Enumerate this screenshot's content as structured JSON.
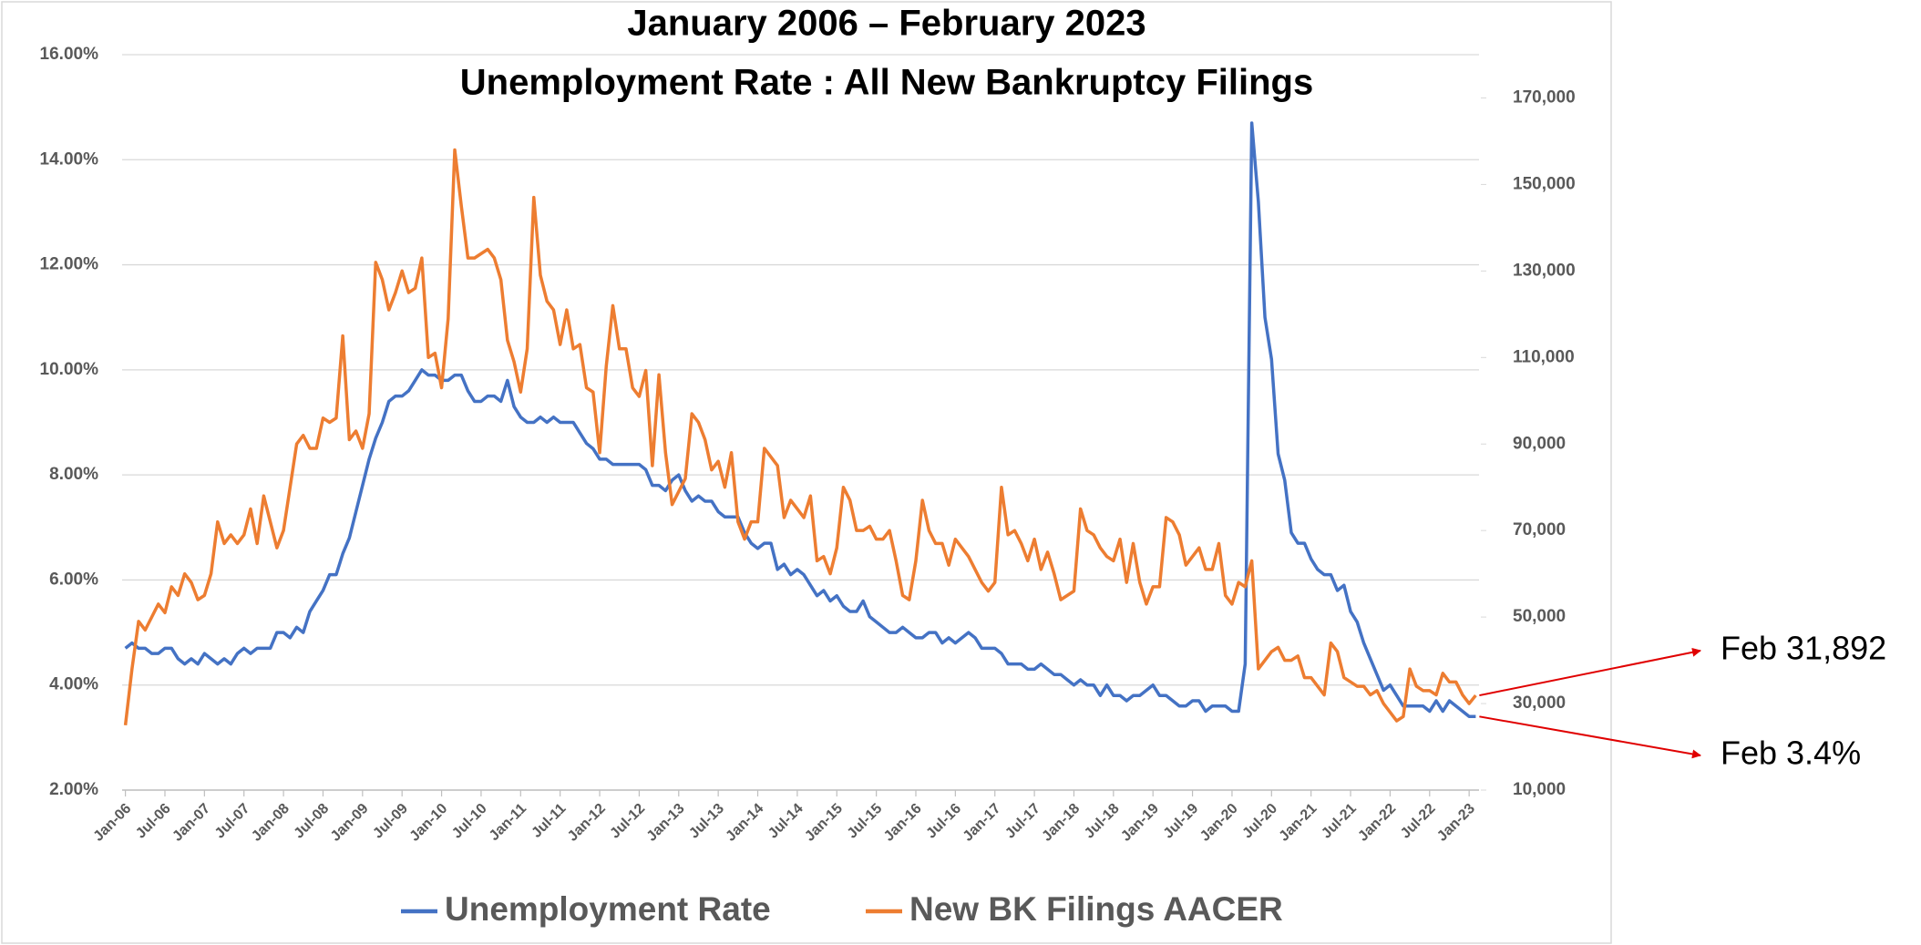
{
  "chart_data": {
    "type": "line",
    "title": [
      "January 2006 – February 2023",
      "Unemployment Rate : All New Bankruptcy Filings"
    ],
    "categories": [
      "Jan-06",
      null,
      null,
      null,
      null,
      null,
      "Jul-06",
      null,
      null,
      null,
      null,
      null,
      "Jan-07",
      null,
      null,
      null,
      null,
      null,
      "Jul-07",
      null,
      null,
      null,
      null,
      null,
      "Jan-08",
      null,
      null,
      null,
      null,
      null,
      "Jul-08",
      null,
      null,
      null,
      null,
      null,
      "Jan-09",
      null,
      null,
      null,
      null,
      null,
      "Jul-09",
      null,
      null,
      null,
      null,
      null,
      "Jan-10",
      null,
      null,
      null,
      null,
      null,
      "Jul-10",
      null,
      null,
      null,
      null,
      null,
      "Jan-11",
      null,
      null,
      null,
      null,
      null,
      "Jul-11",
      null,
      null,
      null,
      null,
      null,
      "Jan-12",
      null,
      null,
      null,
      null,
      null,
      "Jul-12",
      null,
      null,
      null,
      null,
      null,
      "Jan-13",
      null,
      null,
      null,
      null,
      null,
      "Jul-13",
      null,
      null,
      null,
      null,
      null,
      "Jan-14",
      null,
      null,
      null,
      null,
      null,
      "Jul-14",
      null,
      null,
      null,
      null,
      null,
      "Jan-15",
      null,
      null,
      null,
      null,
      null,
      "Jul-15",
      null,
      null,
      null,
      null,
      null,
      "Jan-16",
      null,
      null,
      null,
      null,
      null,
      "Jul-16",
      null,
      null,
      null,
      null,
      null,
      "Jan-17",
      null,
      null,
      null,
      null,
      null,
      "Jul-17",
      null,
      null,
      null,
      null,
      null,
      "Jan-18",
      null,
      null,
      null,
      null,
      null,
      "Jul-18",
      null,
      null,
      null,
      null,
      null,
      "Jan-19",
      null,
      null,
      null,
      null,
      null,
      "Jul-19",
      null,
      null,
      null,
      null,
      null,
      "Jan-20",
      null,
      null,
      null,
      null,
      null,
      "Jul-20",
      null,
      null,
      null,
      null,
      null,
      "Jan-21",
      null,
      null,
      null,
      null,
      null,
      "Jul-21",
      null,
      null,
      null,
      null,
      null,
      "Jan-22",
      null,
      null,
      null,
      null,
      null,
      "Jul-22",
      null,
      null,
      null,
      null,
      null,
      "Jan-23",
      null
    ],
    "series": [
      {
        "name": "Unemployment Rate",
        "color": "#4472c4",
        "axis": "y",
        "values": [
          4.7,
          4.8,
          4.7,
          4.7,
          4.6,
          4.6,
          4.7,
          4.7,
          4.5,
          4.4,
          4.5,
          4.4,
          4.6,
          4.5,
          4.4,
          4.5,
          4.4,
          4.6,
          4.7,
          4.6,
          4.7,
          4.7,
          4.7,
          5.0,
          5.0,
          4.9,
          5.1,
          5.0,
          5.4,
          5.6,
          5.8,
          6.1,
          6.1,
          6.5,
          6.8,
          7.3,
          7.8,
          8.3,
          8.7,
          9.0,
          9.4,
          9.5,
          9.5,
          9.6,
          9.8,
          10.0,
          9.9,
          9.9,
          9.8,
          9.8,
          9.9,
          9.9,
          9.6,
          9.4,
          9.4,
          9.5,
          9.5,
          9.4,
          9.8,
          9.3,
          9.1,
          9.0,
          9.0,
          9.1,
          9.0,
          9.1,
          9.0,
          9.0,
          9.0,
          8.8,
          8.6,
          8.5,
          8.3,
          8.3,
          8.2,
          8.2,
          8.2,
          8.2,
          8.2,
          8.1,
          7.8,
          7.8,
          7.7,
          7.9,
          8.0,
          7.7,
          7.5,
          7.6,
          7.5,
          7.5,
          7.3,
          7.2,
          7.2,
          7.2,
          6.9,
          6.7,
          6.6,
          6.7,
          6.7,
          6.2,
          6.3,
          6.1,
          6.2,
          6.1,
          5.9,
          5.7,
          5.8,
          5.6,
          5.7,
          5.5,
          5.4,
          5.4,
          5.6,
          5.3,
          5.2,
          5.1,
          5.0,
          5.0,
          5.1,
          5.0,
          4.9,
          4.9,
          5.0,
          5.0,
          4.8,
          4.9,
          4.8,
          4.9,
          5.0,
          4.9,
          4.7,
          4.7,
          4.7,
          4.6,
          4.4,
          4.4,
          4.4,
          4.3,
          4.3,
          4.4,
          4.3,
          4.2,
          4.2,
          4.1,
          4.0,
          4.1,
          4.0,
          4.0,
          3.8,
          4.0,
          3.8,
          3.8,
          3.7,
          3.8,
          3.8,
          3.9,
          4.0,
          3.8,
          3.8,
          3.7,
          3.6,
          3.6,
          3.7,
          3.7,
          3.5,
          3.6,
          3.6,
          3.6,
          3.5,
          3.5,
          4.4,
          14.7,
          13.2,
          11.0,
          10.2,
          8.4,
          7.9,
          6.9,
          6.7,
          6.7,
          6.4,
          6.2,
          6.1,
          6.1,
          5.8,
          5.9,
          5.4,
          5.2,
          4.8,
          4.5,
          4.2,
          3.9,
          4.0,
          3.8,
          3.6,
          3.6,
          3.6,
          3.6,
          3.5,
          3.7,
          3.5,
          3.7,
          3.6,
          3.5,
          3.4,
          3.4
        ]
      },
      {
        "name": "New BK Filings AACER",
        "color": "#ed7d31",
        "axis": "y2",
        "values": [
          25000,
          38000,
          49000,
          47000,
          50000,
          53000,
          51000,
          57000,
          55000,
          60000,
          58000,
          54000,
          55000,
          60000,
          72000,
          67000,
          69000,
          67000,
          69000,
          75000,
          67000,
          78000,
          72000,
          66000,
          70000,
          80000,
          90000,
          92000,
          89000,
          89000,
          96000,
          95000,
          96000,
          115000,
          91000,
          93000,
          89000,
          97000,
          132000,
          128000,
          121000,
          125000,
          130000,
          125000,
          126000,
          133000,
          110000,
          111000,
          103000,
          119000,
          158000,
          145000,
          133000,
          133000,
          134000,
          135000,
          133000,
          128000,
          114000,
          109000,
          102000,
          112000,
          147000,
          129000,
          123000,
          121000,
          113000,
          121000,
          112000,
          113000,
          103000,
          102000,
          88000,
          108000,
          122000,
          112000,
          112000,
          103000,
          101000,
          107000,
          85000,
          106000,
          88000,
          76000,
          79000,
          82000,
          97000,
          95000,
          91000,
          84000,
          86000,
          80000,
          88000,
          72000,
          68000,
          72000,
          72000,
          89000,
          87000,
          85000,
          73000,
          77000,
          75000,
          73000,
          78000,
          63000,
          64000,
          60000,
          66000,
          80000,
          77000,
          70000,
          70000,
          71000,
          68000,
          68000,
          70000,
          63000,
          55000,
          54000,
          63000,
          77000,
          70000,
          67000,
          67000,
          62000,
          68000,
          66000,
          64000,
          61000,
          58000,
          56000,
          58000,
          80000,
          69000,
          70000,
          67000,
          63000,
          68000,
          61000,
          65000,
          60000,
          54000,
          55000,
          56000,
          75000,
          70000,
          69000,
          66000,
          64000,
          63000,
          68000,
          58000,
          67000,
          58000,
          53000,
          57000,
          57000,
          73000,
          72000,
          69000,
          62000,
          64000,
          66000,
          61000,
          61000,
          67000,
          55000,
          53000,
          58000,
          57000,
          63000,
          38000,
          40000,
          42000,
          43000,
          40000,
          40000,
          41000,
          36000,
          36000,
          34000,
          32000,
          44000,
          42000,
          36000,
          35000,
          34000,
          34000,
          32000,
          33000,
          30000,
          28000,
          26000,
          27000,
          38000,
          34000,
          33000,
          33000,
          32000,
          37000,
          35000,
          35000,
          32000,
          30000,
          31892
        ]
      }
    ],
    "ylim": [
      2,
      16
    ],
    "yticks": [
      {
        "value": 2,
        "label": "2.00%"
      },
      {
        "value": 4,
        "label": "4.00%"
      },
      {
        "value": 6,
        "label": "6.00%"
      },
      {
        "value": 8,
        "label": "8.00%"
      },
      {
        "value": 10,
        "label": "10.00%"
      },
      {
        "value": 12,
        "label": "12.00%"
      },
      {
        "value": 14,
        "label": "14.00%"
      },
      {
        "value": 16,
        "label": "16.00%"
      }
    ],
    "y2lim": [
      10000,
      180000
    ],
    "y2ticks": [
      {
        "value": 10000,
        "label": "10,000"
      },
      {
        "value": 30000,
        "label": "30,000"
      },
      {
        "value": 50000,
        "label": "50,000"
      },
      {
        "value": 70000,
        "label": "70,000"
      },
      {
        "value": 90000,
        "label": "90,000"
      },
      {
        "value": 110000,
        "label": "110,000"
      },
      {
        "value": 130000,
        "label": "130,000"
      },
      {
        "value": 150000,
        "label": "150,000"
      },
      {
        "value": 170000,
        "label": "170,000"
      }
    ],
    "grid": true,
    "legend": "bottom",
    "annotations": [
      "Feb 31,892",
      "Feb 3.4%"
    ]
  }
}
